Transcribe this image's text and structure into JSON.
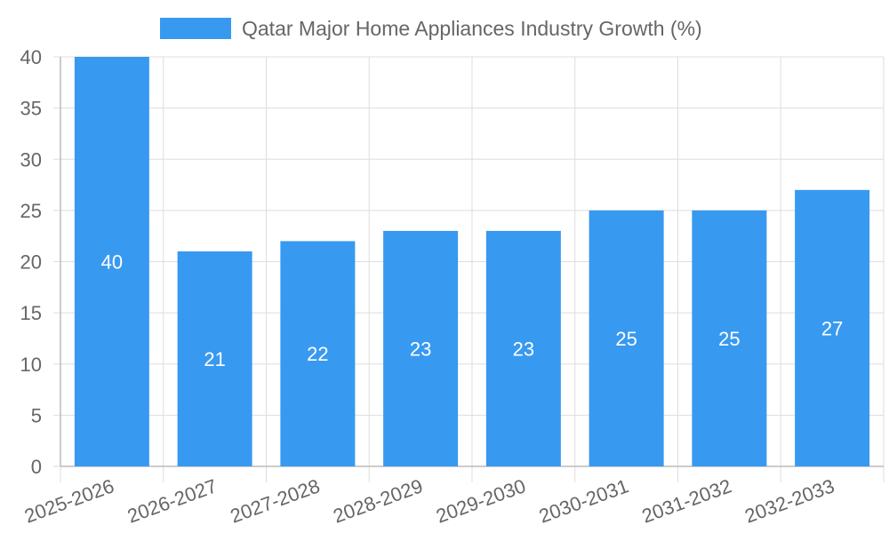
{
  "legend": {
    "label": "Qatar Major Home Appliances Industry Growth (%)",
    "color": "#3899f0"
  },
  "colors": {
    "bar": "#3899f0",
    "grid": "#dddddd",
    "text": "#666666"
  },
  "chart_data": {
    "type": "bar",
    "categories": [
      "2025-2026",
      "2026-2027",
      "2027-2028",
      "2028-2029",
      "2029-2030",
      "2030-2031",
      "2031-2032",
      "2032-2033"
    ],
    "series": [
      {
        "name": "Qatar Major Home Appliances Industry Growth (%)",
        "values": [
          40,
          21,
          22,
          23,
          23,
          25,
          25,
          27
        ]
      }
    ],
    "ylim": [
      0,
      40
    ],
    "yticks": [
      0,
      5,
      10,
      15,
      20,
      25,
      30,
      35,
      40
    ],
    "grid": true,
    "legend_position": "top",
    "data_labels": true
  }
}
